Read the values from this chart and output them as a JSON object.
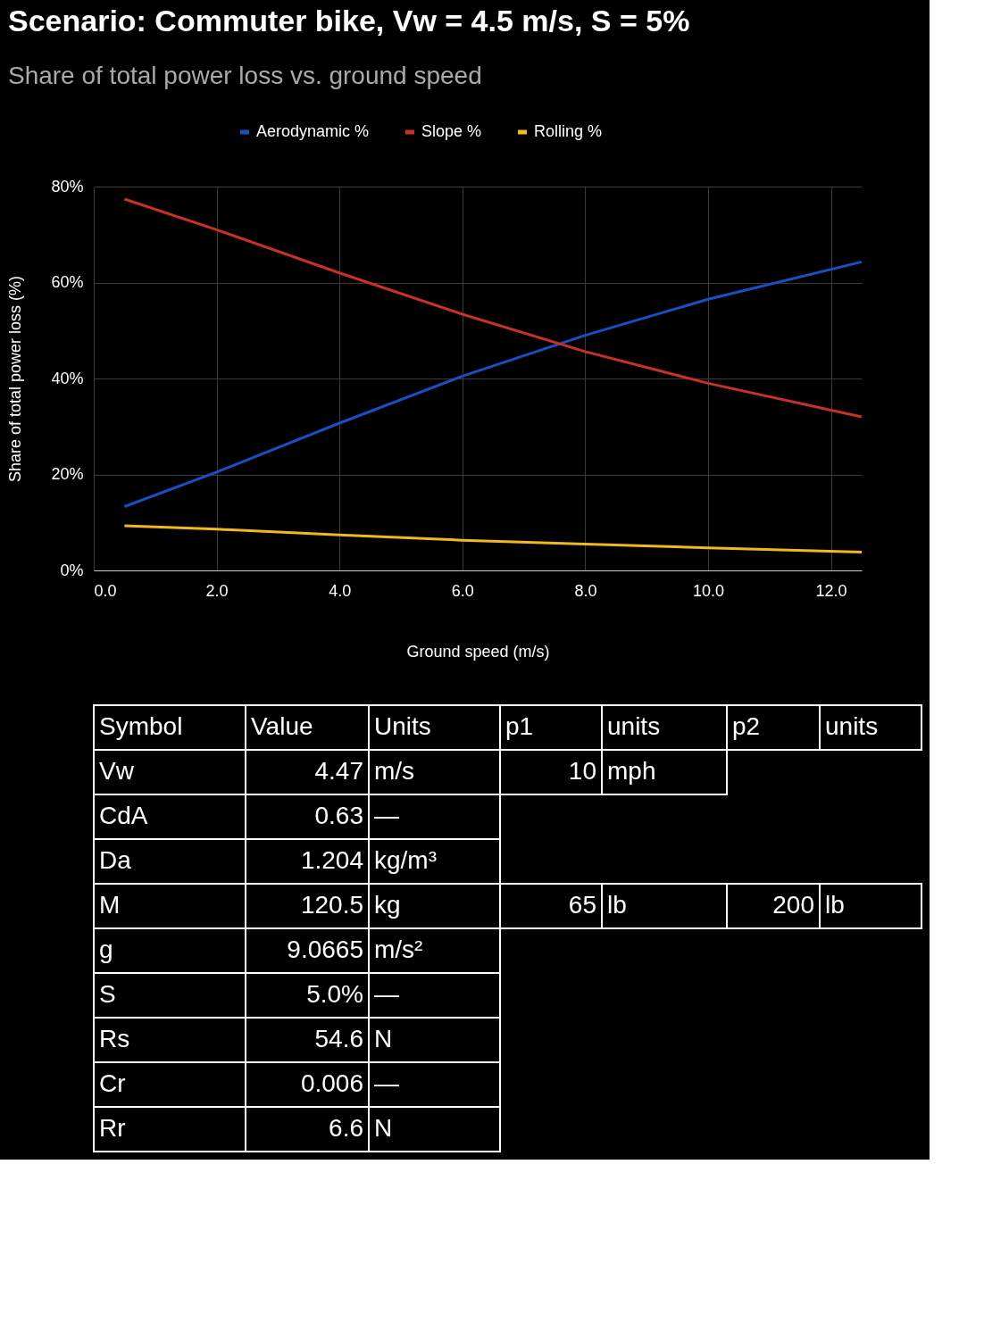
{
  "chart_data": [
    {
      "type": "line",
      "title": "Scenario: Commuter bike, Vw = 4.5 m/s, S = 5%",
      "subtitle": "Share of total power loss vs. ground speed",
      "xlabel": "Ground speed (m/s)",
      "ylabel": "Share of total power loss (%)",
      "x": [
        0.5,
        2,
        4,
        6,
        8,
        10,
        12.5
      ],
      "series": [
        {
          "name": "Aerodynamic %",
          "color": "#1a4fc4",
          "values": [
            13.3,
            20.5,
            30.7,
            40.5,
            49,
            56.5,
            64.3
          ]
        },
        {
          "name": "Slope %",
          "color": "#c8302a",
          "values": [
            77.4,
            71,
            62,
            53.4,
            45.6,
            39,
            32
          ]
        },
        {
          "name": "Rolling %",
          "color": "#f2b81c",
          "values": [
            9.3,
            8.6,
            7.4,
            6.3,
            5.5,
            4.7,
            3.8
          ]
        }
      ],
      "xlim": [
        0,
        12.5
      ],
      "ylim": [
        0,
        80
      ],
      "xticks": [
        {
          "value": 0,
          "label": "0.0"
        },
        {
          "value": 2,
          "label": "2.0"
        },
        {
          "value": 4,
          "label": "4.0"
        },
        {
          "value": 6,
          "label": "6.0"
        },
        {
          "value": 8,
          "label": "8.0"
        },
        {
          "value": 10,
          "label": "10.0"
        },
        {
          "value": 12,
          "label": "12.0"
        }
      ],
      "yticks": [
        {
          "value": 0,
          "label": "0%"
        },
        {
          "value": 20,
          "label": "20%"
        },
        {
          "value": 40,
          "label": "40%"
        },
        {
          "value": 60,
          "label": "60%"
        },
        {
          "value": 80,
          "label": "80%"
        }
      ],
      "grid": true,
      "legend": "top",
      "marker": "none",
      "line_style": "solid"
    },
    {
      "type": "other",
      "categories": [
        "Symbol",
        "Value",
        "Units",
        "p1",
        "units",
        "p2",
        "units"
      ],
      "cell_labels": [
        [
          "Vw",
          "4.47",
          "m/s",
          "10",
          "mph",
          null,
          null
        ],
        [
          "CdA",
          "0.63",
          "—",
          null,
          null,
          null,
          null
        ],
        [
          "Da",
          "1.204",
          "kg/m³",
          null,
          null,
          null,
          null
        ],
        [
          "M",
          "120.5",
          "kg",
          "65",
          "lb",
          "200",
          "lb"
        ],
        [
          "g",
          "9.0665",
          "m/s²",
          null,
          null,
          null,
          null
        ],
        [
          "S",
          "5.0%",
          "—",
          null,
          null,
          null,
          null
        ],
        [
          "Rs",
          "54.6",
          "N",
          null,
          null,
          null,
          null
        ],
        [
          "Cr",
          "0.006",
          "—",
          null,
          null,
          null,
          null
        ],
        [
          "Rr",
          "6.6",
          "N",
          null,
          null,
          null,
          null
        ]
      ]
    }
  ]
}
